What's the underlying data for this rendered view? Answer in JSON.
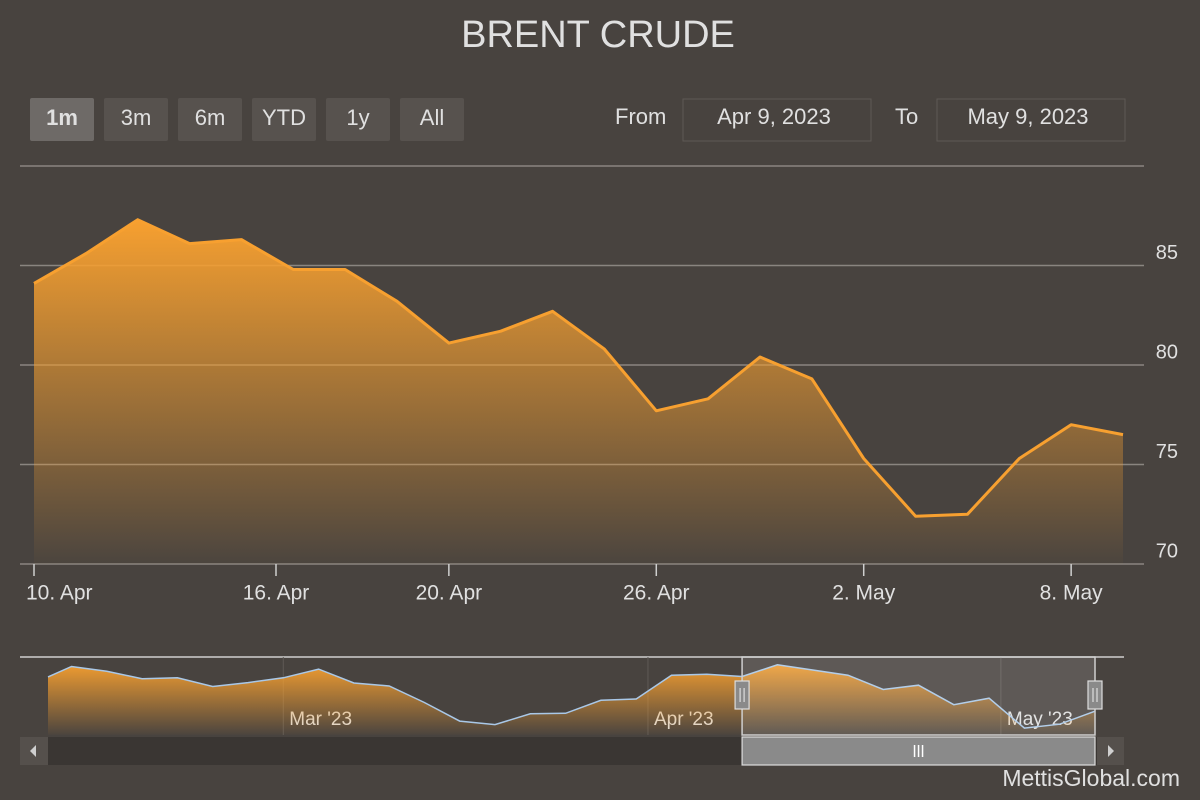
{
  "chart_data": [
    {
      "type": "area",
      "title": "BRENT CRUDE",
      "color": "#f7a030",
      "x": [
        "2023-04-10",
        "2023-04-11",
        "2023-04-12",
        "2023-04-13",
        "2023-04-14",
        "2023-04-17",
        "2023-04-18",
        "2023-04-19",
        "2023-04-20",
        "2023-04-21",
        "2023-04-24",
        "2023-04-25",
        "2023-04-26",
        "2023-04-27",
        "2023-04-28",
        "2023-05-01",
        "2023-05-02",
        "2023-05-03",
        "2023-05-04",
        "2023-05-05",
        "2023-05-08",
        "2023-05-09"
      ],
      "values": [
        84.1,
        85.6,
        87.3,
        86.1,
        86.3,
        84.8,
        84.8,
        83.2,
        81.1,
        81.7,
        82.7,
        80.8,
        77.7,
        78.3,
        80.4,
        79.3,
        75.3,
        72.4,
        72.5,
        75.3,
        77.0,
        76.5
      ],
      "xticks": [
        {
          "value": "2023-04-10",
          "label": "10. Apr"
        },
        {
          "value": "2023-04-16",
          "label": "16. Apr"
        },
        {
          "value": "2023-04-20",
          "label": "20. Apr"
        },
        {
          "value": "2023-04-26",
          "label": "26. Apr"
        },
        {
          "value": "2023-05-02",
          "label": "2. May"
        },
        {
          "value": "2023-05-08",
          "label": "8. May"
        }
      ],
      "ylim": [
        70,
        90
      ],
      "yticks": [
        70,
        75,
        80,
        85
      ],
      "grid": true
    },
    {
      "type": "navigator",
      "line_color": "#a9c8e8",
      "fill_color": "#f7a030",
      "x": [
        "2023-02-09",
        "2023-02-11",
        "2023-02-14",
        "2023-02-17",
        "2023-02-20",
        "2023-02-23",
        "2023-02-26",
        "2023-03-01",
        "2023-03-04",
        "2023-03-07",
        "2023-03-10",
        "2023-03-13",
        "2023-03-16",
        "2023-03-19",
        "2023-03-22",
        "2023-03-25",
        "2023-03-28",
        "2023-03-31",
        "2023-04-03",
        "2023-04-06",
        "2023-04-09",
        "2023-04-12",
        "2023-04-15",
        "2023-04-18",
        "2023-04-21",
        "2023-04-24",
        "2023-04-27",
        "2023-04-30",
        "2023-05-03",
        "2023-05-06",
        "2023-05-09"
      ],
      "values": [
        84.4,
        86.8,
        85.7,
        84.0,
        84.2,
        82.2,
        83.1,
        84.2,
        86.2,
        83.0,
        82.3,
        78.5,
        74.2,
        73.4,
        75.9,
        76.0,
        79.0,
        79.3,
        84.8,
        85.0,
        84.5,
        87.2,
        86.0,
        84.8,
        81.5,
        82.5,
        78.0,
        79.5,
        72.6,
        73.5,
        76.5
      ],
      "xlim": [
        "2023-02-09",
        "2023-05-09"
      ],
      "ylim": [
        71,
        89
      ],
      "xticks": [
        {
          "value": "2023-03-01",
          "label": "Mar '23"
        },
        {
          "value": "2023-04-01",
          "label": "Apr '23"
        },
        {
          "value": "2023-05-01",
          "label": "May '23"
        }
      ]
    }
  ],
  "range_selector": {
    "buttons": [
      "1m",
      "3m",
      "6m",
      "YTD",
      "1y",
      "All"
    ],
    "selected": 0,
    "from_label": "From",
    "from": "Apr 9, 2023",
    "to_label": "To",
    "to": "May 9, 2023"
  },
  "credit": "MettisGlobal.com"
}
